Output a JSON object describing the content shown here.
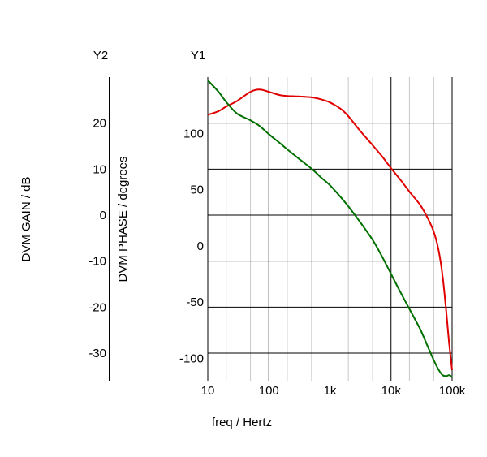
{
  "chart_data": {
    "type": "line",
    "xscale": "log",
    "xlabel": "freq / Hertz",
    "xlim": [
      10,
      100000
    ],
    "x_ticks": [
      {
        "value": 10,
        "label": "10"
      },
      {
        "value": 100,
        "label": "100"
      },
      {
        "value": 1000,
        "label": "1k"
      },
      {
        "value": 10000,
        "label": "10k"
      },
      {
        "value": 100000,
        "label": "100k"
      }
    ],
    "y1": {
      "header": "Y1",
      "label": "DVM PHASE / degrees",
      "ylim": [
        -120,
        150
      ],
      "ticks": [
        {
          "value": 100,
          "label": "100"
        },
        {
          "value": 50,
          "label": "50"
        },
        {
          "value": 0,
          "label": "0"
        },
        {
          "value": -50,
          "label": "-50"
        },
        {
          "value": -100,
          "label": "-100"
        }
      ]
    },
    "y2": {
      "header": "Y2",
      "label": "DVM GAIN / dB",
      "ylim": [
        -36,
        30
      ],
      "ticks": [
        {
          "value": 20,
          "label": "20"
        },
        {
          "value": 10,
          "label": "10"
        },
        {
          "value": 0,
          "label": "0"
        },
        {
          "value": -10,
          "label": "-10"
        },
        {
          "value": -20,
          "label": "-20"
        },
        {
          "value": -30,
          "label": "-30"
        }
      ]
    },
    "grid": true,
    "series": [
      {
        "axis": "y2",
        "color": "#e00000",
        "x": [
          10,
          15,
          20,
          30,
          50,
          70,
          100,
          150,
          200,
          300,
          500,
          700,
          1000,
          1500,
          2000,
          3000,
          5000,
          7000,
          10000,
          15000,
          20000,
          30000,
          40000,
          50000,
          60000,
          70000,
          80000,
          90000,
          100000
        ],
        "y": [
          21.8,
          22.6,
          23.6,
          24.8,
          26.8,
          27.3,
          26.8,
          26.1,
          25.9,
          25.8,
          25.6,
          25.2,
          24.5,
          23.1,
          21.5,
          18.6,
          15.2,
          12.9,
          10.2,
          7.3,
          5.1,
          2.2,
          -0.7,
          -3.6,
          -7.6,
          -13.3,
          -20.8,
          -28.3,
          -33.7
        ]
      },
      {
        "axis": "y2",
        "color": "#007000",
        "x": [
          10,
          15,
          20,
          30,
          50,
          70,
          100,
          150,
          200,
          300,
          500,
          700,
          1000,
          1500,
          2000,
          3000,
          5000,
          7000,
          10000,
          15000,
          20000,
          30000,
          40000,
          50000,
          60000,
          70000,
          80000,
          90000,
          100000
        ],
        "y": [
          29.3,
          26.8,
          24.6,
          22.1,
          20.6,
          19.4,
          17.6,
          15.7,
          14.3,
          12.4,
          10.1,
          8.3,
          6.5,
          3.9,
          1.9,
          -1.2,
          -5.4,
          -8.8,
          -12.8,
          -17.3,
          -20.4,
          -24.8,
          -28.6,
          -31.5,
          -33.6,
          -34.8,
          -35.0,
          -34.8,
          -35.2
        ]
      }
    ]
  }
}
